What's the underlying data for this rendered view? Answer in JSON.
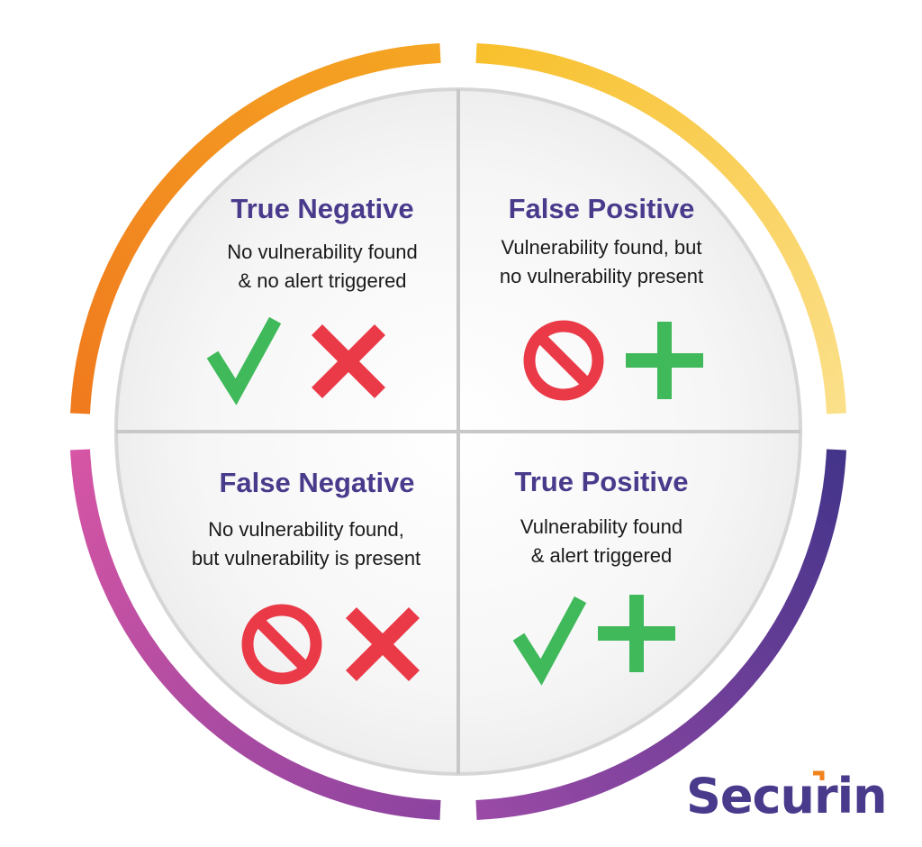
{
  "colors": {
    "title": "#4a3a8c",
    "text": "#1a1a1a",
    "green": "#3fb95a",
    "red": "#ea3a48",
    "divider": "#c9c9c9",
    "arc_top_left": "#f0831e",
    "arc_top_right": "#f8c632",
    "arc_bottom_left": "#b54a9c",
    "arc_bottom_right": "#4a3a8c"
  },
  "quadrants": [
    {
      "id": "true-negative",
      "title": "True Negative",
      "lines": [
        "No vulnerability found",
        "& no alert triggered"
      ],
      "icons": [
        "check-icon",
        "cross-icon"
      ]
    },
    {
      "id": "false-positive",
      "title": "False Positive",
      "lines": [
        "Vulnerability found, but",
        "no vulnerability present"
      ],
      "icons": [
        "prohibited-icon",
        "plus-icon"
      ]
    },
    {
      "id": "false-negative",
      "title": "False Negative",
      "lines": [
        "No vulnerability found,",
        "but vulnerability is present"
      ],
      "icons": [
        "prohibited-icon",
        "cross-icon"
      ]
    },
    {
      "id": "true-positive",
      "title": "True Positive",
      "lines": [
        "Vulnerability found",
        "& alert triggered"
      ],
      "icons": [
        "check-icon",
        "plus-icon"
      ]
    }
  ],
  "brand": {
    "name": "Securin"
  }
}
